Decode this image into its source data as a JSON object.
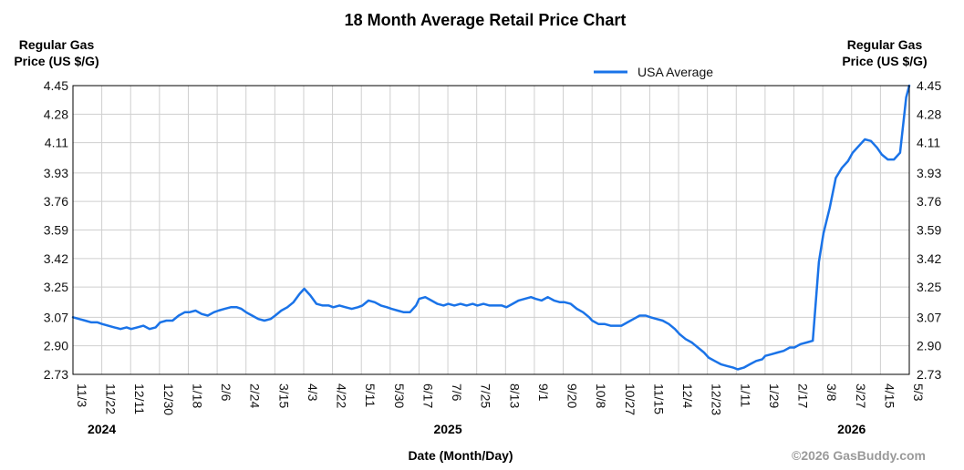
{
  "chart_data": {
    "type": "line",
    "title": "18 Month Average Retail Price Chart",
    "ylabel_left": [
      "Regular Gas",
      "Price (US $/G)"
    ],
    "ylabel_right": [
      "Regular Gas",
      "Price (US $/G)"
    ],
    "xlabel": "Date (Month/Day)",
    "legend": {
      "label": "USA Average",
      "position": "top-right"
    },
    "copyright": "©2026 GasBuddy.com",
    "ylim": [
      2.73,
      4.45
    ],
    "yticks": [
      "4.45",
      "4.28",
      "4.11",
      "3.93",
      "3.76",
      "3.59",
      "3.42",
      "3.25",
      "3.07",
      "2.90",
      "2.73"
    ],
    "xticks": [
      "11/3",
      "11/22",
      "12/11",
      "12/30",
      "1/18",
      "2/6",
      "2/24",
      "3/15",
      "4/3",
      "4/22",
      "5/11",
      "5/30",
      "6/17",
      "7/6",
      "7/25",
      "8/13",
      "9/1",
      "9/20",
      "10/8",
      "10/27",
      "11/15",
      "12/4",
      "12/23",
      "1/11",
      "1/29",
      "2/17",
      "3/8",
      "3/27",
      "4/15",
      "5/3"
    ],
    "years": [
      {
        "label": "2024",
        "at_tick": 1
      },
      {
        "label": "2025",
        "at_tick": 13
      },
      {
        "label": "2026",
        "at_tick": 27
      }
    ],
    "grid": true,
    "line_color": "#1a73e8",
    "series": [
      {
        "name": "USA Average",
        "x": [
          "2024-11-03",
          "2024-11-07",
          "2024-11-11",
          "2024-11-15",
          "2024-11-19",
          "2024-11-22",
          "2024-11-26",
          "2024-11-30",
          "2024-12-04",
          "2024-12-08",
          "2024-12-11",
          "2024-12-15",
          "2024-12-19",
          "2024-12-23",
          "2024-12-27",
          "2024-12-30",
          "2025-01-03",
          "2025-01-07",
          "2025-01-11",
          "2025-01-15",
          "2025-01-18",
          "2025-01-22",
          "2025-01-26",
          "2025-01-30",
          "2025-02-03",
          "2025-02-06",
          "2025-02-10",
          "2025-02-14",
          "2025-02-18",
          "2025-02-21",
          "2025-02-24",
          "2025-02-28",
          "2025-03-04",
          "2025-03-08",
          "2025-03-12",
          "2025-03-15",
          "2025-03-19",
          "2025-03-23",
          "2025-03-27",
          "2025-03-31",
          "2025-04-03",
          "2025-04-07",
          "2025-04-11",
          "2025-04-15",
          "2025-04-19",
          "2025-04-22",
          "2025-04-26",
          "2025-04-30",
          "2025-05-04",
          "2025-05-08",
          "2025-05-11",
          "2025-05-15",
          "2025-05-19",
          "2025-05-23",
          "2025-05-27",
          "2025-05-30",
          "2025-06-03",
          "2025-06-07",
          "2025-06-11",
          "2025-06-15",
          "2025-06-17",
          "2025-06-21",
          "2025-06-25",
          "2025-06-29",
          "2025-07-03",
          "2025-07-06",
          "2025-07-10",
          "2025-07-14",
          "2025-07-18",
          "2025-07-22",
          "2025-07-25",
          "2025-07-29",
          "2025-08-02",
          "2025-08-06",
          "2025-08-10",
          "2025-08-13",
          "2025-08-17",
          "2025-08-21",
          "2025-08-25",
          "2025-08-29",
          "2025-09-01",
          "2025-09-05",
          "2025-09-09",
          "2025-09-13",
          "2025-09-17",
          "2025-09-20",
          "2025-09-24",
          "2025-09-28",
          "2025-10-02",
          "2025-10-06",
          "2025-10-08",
          "2025-10-12",
          "2025-10-16",
          "2025-10-20",
          "2025-10-24",
          "2025-10-27",
          "2025-10-31",
          "2025-11-04",
          "2025-11-08",
          "2025-11-12",
          "2025-11-15",
          "2025-11-19",
          "2025-11-23",
          "2025-11-27",
          "2025-12-01",
          "2025-12-04",
          "2025-12-08",
          "2025-12-12",
          "2025-12-16",
          "2025-12-20",
          "2025-12-23",
          "2025-12-27",
          "2025-12-31",
          "2026-01-04",
          "2026-01-08",
          "2026-01-11",
          "2026-01-15",
          "2026-01-19",
          "2026-01-23",
          "2026-01-27",
          "2026-01-29",
          "2026-02-02",
          "2026-02-06",
          "2026-02-10",
          "2026-02-14",
          "2026-02-17",
          "2026-02-21",
          "2026-02-25",
          "2026-03-01",
          "2026-03-05",
          "2026-03-08",
          "2026-03-12",
          "2026-03-16",
          "2026-03-20",
          "2026-03-24",
          "2026-03-27",
          "2026-03-31",
          "2026-04-04",
          "2026-04-08",
          "2026-04-12",
          "2026-04-15",
          "2026-04-19",
          "2026-04-23",
          "2026-04-27",
          "2026-05-01",
          "2026-05-03"
        ],
        "y": [
          3.07,
          3.06,
          3.05,
          3.04,
          3.04,
          3.03,
          3.02,
          3.01,
          3.0,
          3.01,
          3.0,
          3.01,
          3.02,
          3.0,
          3.01,
          3.04,
          3.05,
          3.05,
          3.08,
          3.1,
          3.1,
          3.11,
          3.09,
          3.08,
          3.1,
          3.11,
          3.12,
          3.13,
          3.13,
          3.12,
          3.1,
          3.08,
          3.06,
          3.05,
          3.06,
          3.08,
          3.11,
          3.13,
          3.16,
          3.21,
          3.24,
          3.2,
          3.15,
          3.14,
          3.14,
          3.13,
          3.14,
          3.13,
          3.12,
          3.13,
          3.14,
          3.17,
          3.16,
          3.14,
          3.13,
          3.12,
          3.11,
          3.1,
          3.1,
          3.14,
          3.18,
          3.19,
          3.17,
          3.15,
          3.14,
          3.15,
          3.14,
          3.15,
          3.14,
          3.15,
          3.14,
          3.15,
          3.14,
          3.14,
          3.14,
          3.13,
          3.15,
          3.17,
          3.18,
          3.19,
          3.18,
          3.17,
          3.19,
          3.17,
          3.16,
          3.16,
          3.15,
          3.12,
          3.1,
          3.07,
          3.05,
          3.03,
          3.03,
          3.02,
          3.02,
          3.02,
          3.04,
          3.06,
          3.08,
          3.08,
          3.07,
          3.06,
          3.05,
          3.03,
          3.0,
          2.97,
          2.94,
          2.92,
          2.89,
          2.86,
          2.83,
          2.81,
          2.79,
          2.78,
          2.77,
          2.76,
          2.77,
          2.79,
          2.81,
          2.82,
          2.84,
          2.85,
          2.86,
          2.87,
          2.89,
          2.89,
          2.91,
          2.92,
          2.93,
          3.4,
          3.57,
          3.72,
          3.9,
          3.96,
          4.0,
          4.05,
          4.09,
          4.13,
          4.12,
          4.08,
          4.04,
          4.01,
          4.01,
          4.05,
          4.38,
          4.45
        ]
      }
    ]
  }
}
